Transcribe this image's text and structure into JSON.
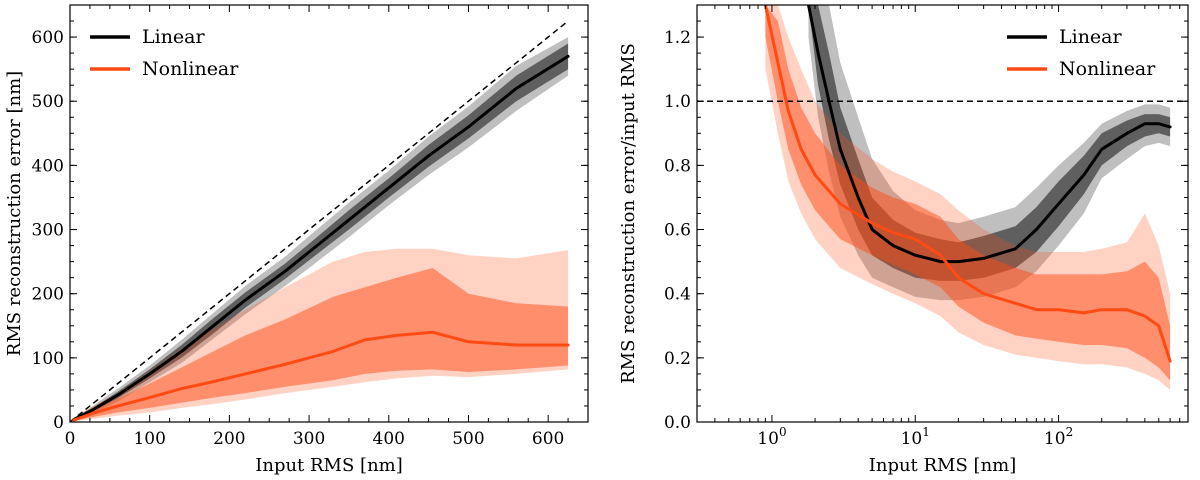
{
  "chart_data": [
    {
      "type": "line",
      "xlabel": "Input RMS [nm]",
      "ylabel": "RMS reconstruction error [nm]",
      "xlim": [
        0,
        650
      ],
      "ylim": [
        0,
        650
      ],
      "xscale": "linear",
      "xticks": [
        0,
        100,
        200,
        300,
        400,
        500,
        600
      ],
      "xtick_labels": [
        "0",
        "100",
        "200",
        "300",
        "400",
        "500",
        "600"
      ],
      "yticks": [
        0,
        100,
        200,
        300,
        400,
        500,
        600
      ],
      "ytick_labels": [
        "0",
        "100",
        "200",
        "300",
        "400",
        "500",
        "600"
      ],
      "legend_position": "top-left",
      "reference_line": {
        "style": "dashed",
        "points": [
          [
            0,
            0
          ],
          [
            625,
            625
          ]
        ]
      },
      "series": [
        {
          "name": "Linear",
          "color": "#000000",
          "x": [
            5,
            30,
            60,
            100,
            140,
            180,
            220,
            270,
            300,
            350,
            400,
            450,
            500,
            560,
            625
          ],
          "values": [
            4,
            20,
            42,
            75,
            110,
            150,
            190,
            235,
            265,
            315,
            365,
            415,
            460,
            520,
            570
          ],
          "band_inner": [
            [
              3,
              5
            ],
            [
              17,
              23
            ],
            [
              37,
              47
            ],
            [
              68,
              82
            ],
            [
              100,
              120
            ],
            [
              138,
              162
            ],
            [
              178,
              202
            ],
            [
              223,
              247
            ],
            [
              252,
              278
            ],
            [
              300,
              330
            ],
            [
              350,
              380
            ],
            [
              398,
              432
            ],
            [
              442,
              478
            ],
            [
              500,
              540
            ],
            [
              550,
              590
            ]
          ],
          "band_outer": [
            [
              2,
              6
            ],
            [
              14,
              26
            ],
            [
              32,
              52
            ],
            [
              62,
              88
            ],
            [
              92,
              128
            ],
            [
              130,
              170
            ],
            [
              168,
              212
            ],
            [
              212,
              258
            ],
            [
              240,
              290
            ],
            [
              288,
              342
            ],
            [
              338,
              392
            ],
            [
              385,
              445
            ],
            [
              428,
              492
            ],
            [
              485,
              555
            ],
            [
              540,
              600
            ]
          ]
        },
        {
          "name": "Nonlinear",
          "color": "#ff4a14",
          "x": [
            5,
            30,
            60,
            100,
            140,
            180,
            220,
            270,
            330,
            370,
            410,
            455,
            500,
            560,
            625
          ],
          "values": [
            3,
            14,
            25,
            38,
            52,
            63,
            75,
            90,
            110,
            128,
            135,
            140,
            125,
            120,
            120
          ],
          "band_inner": [
            [
              2,
              5
            ],
            [
              8,
              20
            ],
            [
              15,
              36
            ],
            [
              22,
              60
            ],
            [
              30,
              85
            ],
            [
              38,
              110
            ],
            [
              45,
              135
            ],
            [
              55,
              160
            ],
            [
              65,
              195
            ],
            [
              75,
              210
            ],
            [
              80,
              225
            ],
            [
              82,
              240
            ],
            [
              78,
              200
            ],
            [
              82,
              185
            ],
            [
              88,
              180
            ]
          ],
          "band_outer": [
            [
              1,
              7
            ],
            [
              5,
              25
            ],
            [
              10,
              45
            ],
            [
              15,
              80
            ],
            [
              22,
              115
            ],
            [
              28,
              145
            ],
            [
              35,
              175
            ],
            [
              45,
              210
            ],
            [
              55,
              250
            ],
            [
              62,
              265
            ],
            [
              68,
              270
            ],
            [
              72,
              270
            ],
            [
              70,
              260
            ],
            [
              75,
              255
            ],
            [
              82,
              268
            ]
          ]
        }
      ]
    },
    {
      "type": "line",
      "xlabel": "Input RMS [nm]",
      "ylabel": "RMS reconstruction error/input RMS",
      "xlim": [
        0.3,
        800
      ],
      "ylim": [
        0,
        1.3
      ],
      "xscale": "log",
      "xticks": [
        1,
        10,
        100
      ],
      "xtick_labels": [
        "10",
        "10",
        "10"
      ],
      "xtick_exponents": [
        "0",
        "1",
        "2"
      ],
      "yticks": [
        0,
        0.2,
        0.4,
        0.6,
        0.8,
        1.0,
        1.2
      ],
      "ytick_labels": [
        "0.0",
        "0.2",
        "0.4",
        "0.6",
        "0.8",
        "1.0",
        "1.2"
      ],
      "legend_position": "top-right",
      "reference_line": {
        "style": "dashed",
        "y": 1.0
      },
      "series": [
        {
          "name": "Linear",
          "color": "#000000",
          "x": [
            1.8,
            2.1,
            2.5,
            3,
            4,
            5,
            7,
            10,
            15,
            20,
            30,
            50,
            70,
            100,
            150,
            200,
            300,
            400,
            500,
            600
          ],
          "values": [
            1.3,
            1.15,
            1.0,
            0.85,
            0.7,
            0.6,
            0.55,
            0.52,
            0.5,
            0.5,
            0.51,
            0.54,
            0.6,
            0.68,
            0.77,
            0.85,
            0.9,
            0.93,
            0.93,
            0.92
          ],
          "band_inner": [
            [
              1.3,
              1.3
            ],
            [
              1.05,
              1.3
            ],
            [
              0.88,
              1.15
            ],
            [
              0.74,
              0.98
            ],
            [
              0.6,
              0.82
            ],
            [
              0.52,
              0.7
            ],
            [
              0.48,
              0.63
            ],
            [
              0.45,
              0.59
            ],
            [
              0.44,
              0.57
            ],
            [
              0.44,
              0.56
            ],
            [
              0.45,
              0.58
            ],
            [
              0.48,
              0.61
            ],
            [
              0.53,
              0.67
            ],
            [
              0.61,
              0.75
            ],
            [
              0.71,
              0.83
            ],
            [
              0.8,
              0.9
            ],
            [
              0.86,
              0.94
            ],
            [
              0.89,
              0.96
            ],
            [
              0.9,
              0.96
            ],
            [
              0.89,
              0.95
            ]
          ],
          "band_outer": [
            [
              1.2,
              1.3
            ],
            [
              0.95,
              1.3
            ],
            [
              0.78,
              1.3
            ],
            [
              0.64,
              1.12
            ],
            [
              0.52,
              0.95
            ],
            [
              0.45,
              0.82
            ],
            [
              0.42,
              0.72
            ],
            [
              0.39,
              0.66
            ],
            [
              0.38,
              0.63
            ],
            [
              0.38,
              0.62
            ],
            [
              0.39,
              0.64
            ],
            [
              0.42,
              0.67
            ],
            [
              0.47,
              0.73
            ],
            [
              0.55,
              0.8
            ],
            [
              0.65,
              0.87
            ],
            [
              0.76,
              0.93
            ],
            [
              0.82,
              0.97
            ],
            [
              0.86,
              0.99
            ],
            [
              0.87,
              0.99
            ],
            [
              0.86,
              0.98
            ]
          ]
        },
        {
          "name": "Nonlinear",
          "color": "#ff4a14",
          "x": [
            0.9,
            1.1,
            1.3,
            1.6,
            2,
            3,
            5,
            7,
            10,
            15,
            20,
            30,
            50,
            70,
            100,
            150,
            200,
            300,
            400,
            500,
            600
          ],
          "values": [
            1.3,
            1.12,
            0.97,
            0.85,
            0.77,
            0.68,
            0.62,
            0.59,
            0.57,
            0.52,
            0.45,
            0.4,
            0.37,
            0.35,
            0.35,
            0.34,
            0.35,
            0.35,
            0.33,
            0.3,
            0.19
          ],
          "band_inner": [
            [
              1.2,
              1.3
            ],
            [
              1.0,
              1.25
            ],
            [
              0.85,
              1.1
            ],
            [
              0.74,
              0.98
            ],
            [
              0.66,
              0.9
            ],
            [
              0.57,
              0.8
            ],
            [
              0.52,
              0.73
            ],
            [
              0.49,
              0.7
            ],
            [
              0.46,
              0.68
            ],
            [
              0.42,
              0.64
            ],
            [
              0.36,
              0.57
            ],
            [
              0.31,
              0.52
            ],
            [
              0.27,
              0.48
            ],
            [
              0.26,
              0.46
            ],
            [
              0.25,
              0.46
            ],
            [
              0.24,
              0.46
            ],
            [
              0.24,
              0.46
            ],
            [
              0.23,
              0.47
            ],
            [
              0.2,
              0.5
            ],
            [
              0.17,
              0.45
            ],
            [
              0.13,
              0.3
            ]
          ],
          "band_outer": [
            [
              1.1,
              1.3
            ],
            [
              0.9,
              1.3
            ],
            [
              0.75,
              1.2
            ],
            [
              0.65,
              1.1
            ],
            [
              0.57,
              1.0
            ],
            [
              0.48,
              0.9
            ],
            [
              0.43,
              0.82
            ],
            [
              0.4,
              0.78
            ],
            [
              0.37,
              0.75
            ],
            [
              0.33,
              0.71
            ],
            [
              0.28,
              0.66
            ],
            [
              0.24,
              0.6
            ],
            [
              0.21,
              0.55
            ],
            [
              0.2,
              0.53
            ],
            [
              0.19,
              0.53
            ],
            [
              0.18,
              0.53
            ],
            [
              0.18,
              0.54
            ],
            [
              0.17,
              0.56
            ],
            [
              0.15,
              0.65
            ],
            [
              0.13,
              0.55
            ],
            [
              0.1,
              0.4
            ]
          ]
        }
      ]
    }
  ]
}
